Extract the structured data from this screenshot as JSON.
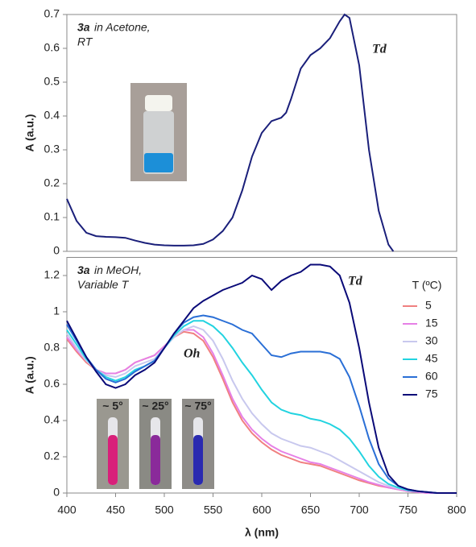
{
  "chart_data": [
    {
      "type": "line",
      "ylabel": "A (a.u.)",
      "annotation": {
        "compound": "3a",
        "text": "in Acetone,",
        "line2": "RT"
      },
      "peak_label": "Td",
      "color": "#1a1f7a",
      "xlim": [
        400,
        800
      ],
      "ylim": [
        0,
        0.7
      ],
      "yticks": [
        0,
        0.1,
        0.2,
        0.3,
        0.4,
        0.5,
        0.6,
        0.7
      ],
      "x": [
        400,
        410,
        420,
        430,
        440,
        450,
        460,
        470,
        480,
        490,
        500,
        510,
        520,
        530,
        540,
        550,
        560,
        570,
        580,
        590,
        600,
        610,
        620,
        625,
        630,
        640,
        650,
        660,
        670,
        680,
        685,
        690,
        700,
        710,
        720,
        730,
        735
      ],
      "values": [
        0.155,
        0.09,
        0.055,
        0.045,
        0.043,
        0.042,
        0.04,
        0.032,
        0.025,
        0.02,
        0.018,
        0.017,
        0.017,
        0.018,
        0.022,
        0.035,
        0.06,
        0.1,
        0.18,
        0.28,
        0.35,
        0.385,
        0.395,
        0.41,
        0.45,
        0.54,
        0.58,
        0.6,
        0.63,
        0.68,
        0.7,
        0.69,
        0.55,
        0.3,
        0.12,
        0.02,
        0
      ]
    },
    {
      "type": "line",
      "ylabel": "A (a.u.)",
      "xlabel": "λ (nm)",
      "annotation": {
        "compound": "3a",
        "text": "in MeOH,",
        "line2": "Variable T"
      },
      "peak_label": "Td",
      "band_label": "Oh",
      "legend_title": "T (ºC)",
      "legend": "right",
      "vial_labels": [
        "~ 5°",
        "~ 25°",
        "~ 75°"
      ],
      "xlim": [
        400,
        800
      ],
      "ylim": [
        0,
        1.3
      ],
      "xticks": [
        400,
        450,
        500,
        550,
        600,
        650,
        700,
        750,
        800
      ],
      "yticks": [
        0,
        0.2,
        0.4,
        0.6,
        0.8,
        1,
        1.2
      ],
      "x": [
        400,
        410,
        420,
        430,
        440,
        450,
        460,
        470,
        480,
        490,
        500,
        510,
        520,
        530,
        540,
        550,
        560,
        570,
        580,
        590,
        600,
        610,
        620,
        630,
        640,
        650,
        660,
        670,
        680,
        690,
        700,
        710,
        720,
        730,
        740,
        750,
        760,
        770,
        780,
        790,
        800
      ],
      "series": [
        {
          "name": "5",
          "color": "#f08080",
          "values": [
            0.85,
            0.78,
            0.72,
            0.68,
            0.66,
            0.66,
            0.68,
            0.72,
            0.74,
            0.76,
            0.81,
            0.86,
            0.89,
            0.88,
            0.84,
            0.75,
            0.63,
            0.5,
            0.4,
            0.33,
            0.28,
            0.24,
            0.21,
            0.19,
            0.17,
            0.16,
            0.15,
            0.13,
            0.11,
            0.09,
            0.07,
            0.055,
            0.04,
            0.03,
            0.02,
            0.01,
            0.005,
            0,
            0,
            0,
            0
          ]
        },
        {
          "name": "15",
          "color": "#e680e6",
          "values": [
            0.86,
            0.79,
            0.73,
            0.68,
            0.66,
            0.66,
            0.68,
            0.72,
            0.74,
            0.76,
            0.81,
            0.86,
            0.9,
            0.9,
            0.86,
            0.77,
            0.65,
            0.52,
            0.42,
            0.35,
            0.3,
            0.26,
            0.23,
            0.21,
            0.19,
            0.17,
            0.16,
            0.14,
            0.12,
            0.1,
            0.08,
            0.06,
            0.045,
            0.03,
            0.02,
            0.01,
            0.005,
            0,
            0,
            0,
            0
          ]
        },
        {
          "name": "30",
          "color": "#c8c8ee",
          "values": [
            0.88,
            0.8,
            0.73,
            0.68,
            0.65,
            0.64,
            0.66,
            0.7,
            0.72,
            0.74,
            0.8,
            0.86,
            0.9,
            0.92,
            0.9,
            0.84,
            0.74,
            0.62,
            0.52,
            0.44,
            0.38,
            0.33,
            0.3,
            0.28,
            0.26,
            0.25,
            0.23,
            0.21,
            0.18,
            0.15,
            0.12,
            0.09,
            0.06,
            0.04,
            0.025,
            0.015,
            0.01,
            0.005,
            0,
            0,
            0
          ]
        },
        {
          "name": "45",
          "color": "#22d3e0",
          "values": [
            0.9,
            0.82,
            0.74,
            0.68,
            0.64,
            0.62,
            0.64,
            0.68,
            0.7,
            0.73,
            0.8,
            0.87,
            0.92,
            0.95,
            0.95,
            0.92,
            0.87,
            0.8,
            0.72,
            0.65,
            0.57,
            0.5,
            0.46,
            0.44,
            0.43,
            0.41,
            0.4,
            0.38,
            0.35,
            0.3,
            0.23,
            0.15,
            0.09,
            0.05,
            0.03,
            0.015,
            0.01,
            0.005,
            0,
            0,
            0
          ]
        },
        {
          "name": "60",
          "color": "#2a6fd6",
          "values": [
            0.93,
            0.84,
            0.75,
            0.68,
            0.63,
            0.61,
            0.63,
            0.67,
            0.7,
            0.73,
            0.8,
            0.88,
            0.94,
            0.97,
            0.98,
            0.97,
            0.95,
            0.93,
            0.9,
            0.88,
            0.82,
            0.76,
            0.75,
            0.77,
            0.78,
            0.78,
            0.78,
            0.77,
            0.74,
            0.64,
            0.48,
            0.3,
            0.16,
            0.08,
            0.04,
            0.02,
            0.01,
            0.005,
            0,
            0,
            0
          ]
        },
        {
          "name": "75",
          "color": "#0a0a78",
          "values": [
            0.95,
            0.85,
            0.75,
            0.67,
            0.6,
            0.58,
            0.6,
            0.65,
            0.68,
            0.72,
            0.8,
            0.88,
            0.95,
            1.02,
            1.06,
            1.09,
            1.12,
            1.14,
            1.16,
            1.2,
            1.18,
            1.12,
            1.17,
            1.2,
            1.22,
            1.26,
            1.26,
            1.25,
            1.2,
            1.05,
            0.8,
            0.5,
            0.25,
            0.1,
            0.04,
            0.02,
            0.01,
            0.005,
            0,
            0,
            0
          ]
        }
      ]
    }
  ]
}
